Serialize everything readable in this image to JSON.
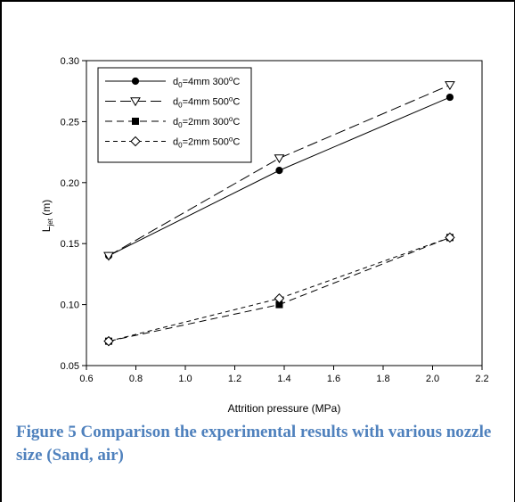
{
  "chart_data": {
    "type": "line",
    "xlabel": "Attrition pressure (MPa)",
    "ylabel": {
      "main": "L",
      "sub": "jet",
      "unit": " (m)"
    },
    "xlim": [
      0.6,
      2.2
    ],
    "ylim": [
      0.05,
      0.3
    ],
    "xticks": [
      "0.6",
      "0.8",
      "1.0",
      "1.2",
      "1.4",
      "1.6",
      "1.8",
      "2.0",
      "2.2"
    ],
    "yticks": [
      "0.05",
      "0.10",
      "0.15",
      "0.20",
      "0.25",
      "0.30"
    ],
    "grid": false,
    "legend_position": "top-left",
    "series": [
      {
        "name": {
          "pre": "d",
          "sub": "0",
          "mid": "=4mm 300",
          "sup": "o",
          "post": "C"
        },
        "x": [
          0.69,
          1.38,
          2.07
        ],
        "y": [
          0.14,
          0.21,
          0.27
        ],
        "line": "solid",
        "marker": "filled-circle"
      },
      {
        "name": {
          "pre": "d",
          "sub": "0",
          "mid": "=4mm 500",
          "sup": "o",
          "post": "C"
        },
        "x": [
          0.69,
          1.38,
          2.07
        ],
        "y": [
          0.14,
          0.22,
          0.28
        ],
        "line": "long-dash",
        "marker": "open-triangle-down"
      },
      {
        "name": {
          "pre": "d",
          "sub": "0",
          "mid": "=2mm 300",
          "sup": "o",
          "post": "C"
        },
        "x": [
          0.69,
          1.38,
          2.07
        ],
        "y": [
          0.07,
          0.1,
          0.155
        ],
        "line": "dash",
        "marker": "filled-square"
      },
      {
        "name": {
          "pre": "d",
          "sub": "0",
          "mid": "=2mm 500",
          "sup": "o",
          "post": "C"
        },
        "x": [
          0.69,
          1.38,
          2.07
        ],
        "y": [
          0.07,
          0.105,
          0.155
        ],
        "line": "short-dash",
        "marker": "open-diamond"
      }
    ]
  },
  "caption": "Figure 5 Comparison the experimental results with various nozzle size (Sand, air)"
}
